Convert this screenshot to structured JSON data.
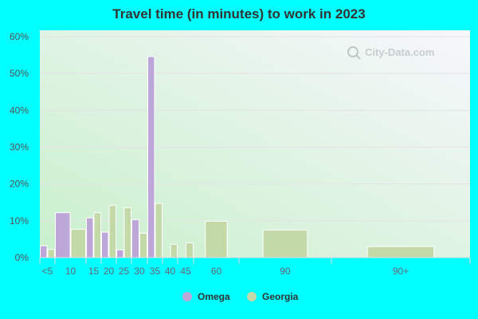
{
  "chart_data": {
    "type": "bar",
    "title": "Travel time (in minutes) to work in 2023",
    "categories": [
      "<5",
      "10",
      "15",
      "20",
      "25",
      "30",
      "35",
      "40",
      "45",
      "60",
      "90",
      "90+"
    ],
    "series": [
      {
        "name": "Omega",
        "color": "#bda7d8",
        "values": [
          3.2,
          12.2,
          10.8,
          6.9,
          2.1,
          10.3,
          54.6,
          0,
          0,
          0,
          0,
          0
        ]
      },
      {
        "name": "Georgia",
        "color": "#c4d9a8",
        "values": [
          2.2,
          7.7,
          12.2,
          14.2,
          13.6,
          6.6,
          14.7,
          3.6,
          4.0,
          9.9,
          7.5,
          3.0
        ]
      }
    ],
    "ylim": [
      0,
      60
    ],
    "yticks": [
      "0%",
      "10%",
      "20%",
      "30%",
      "40%",
      "50%",
      "60%"
    ],
    "grid": true,
    "legend": "bottom",
    "watermark": "City-Data.com"
  }
}
